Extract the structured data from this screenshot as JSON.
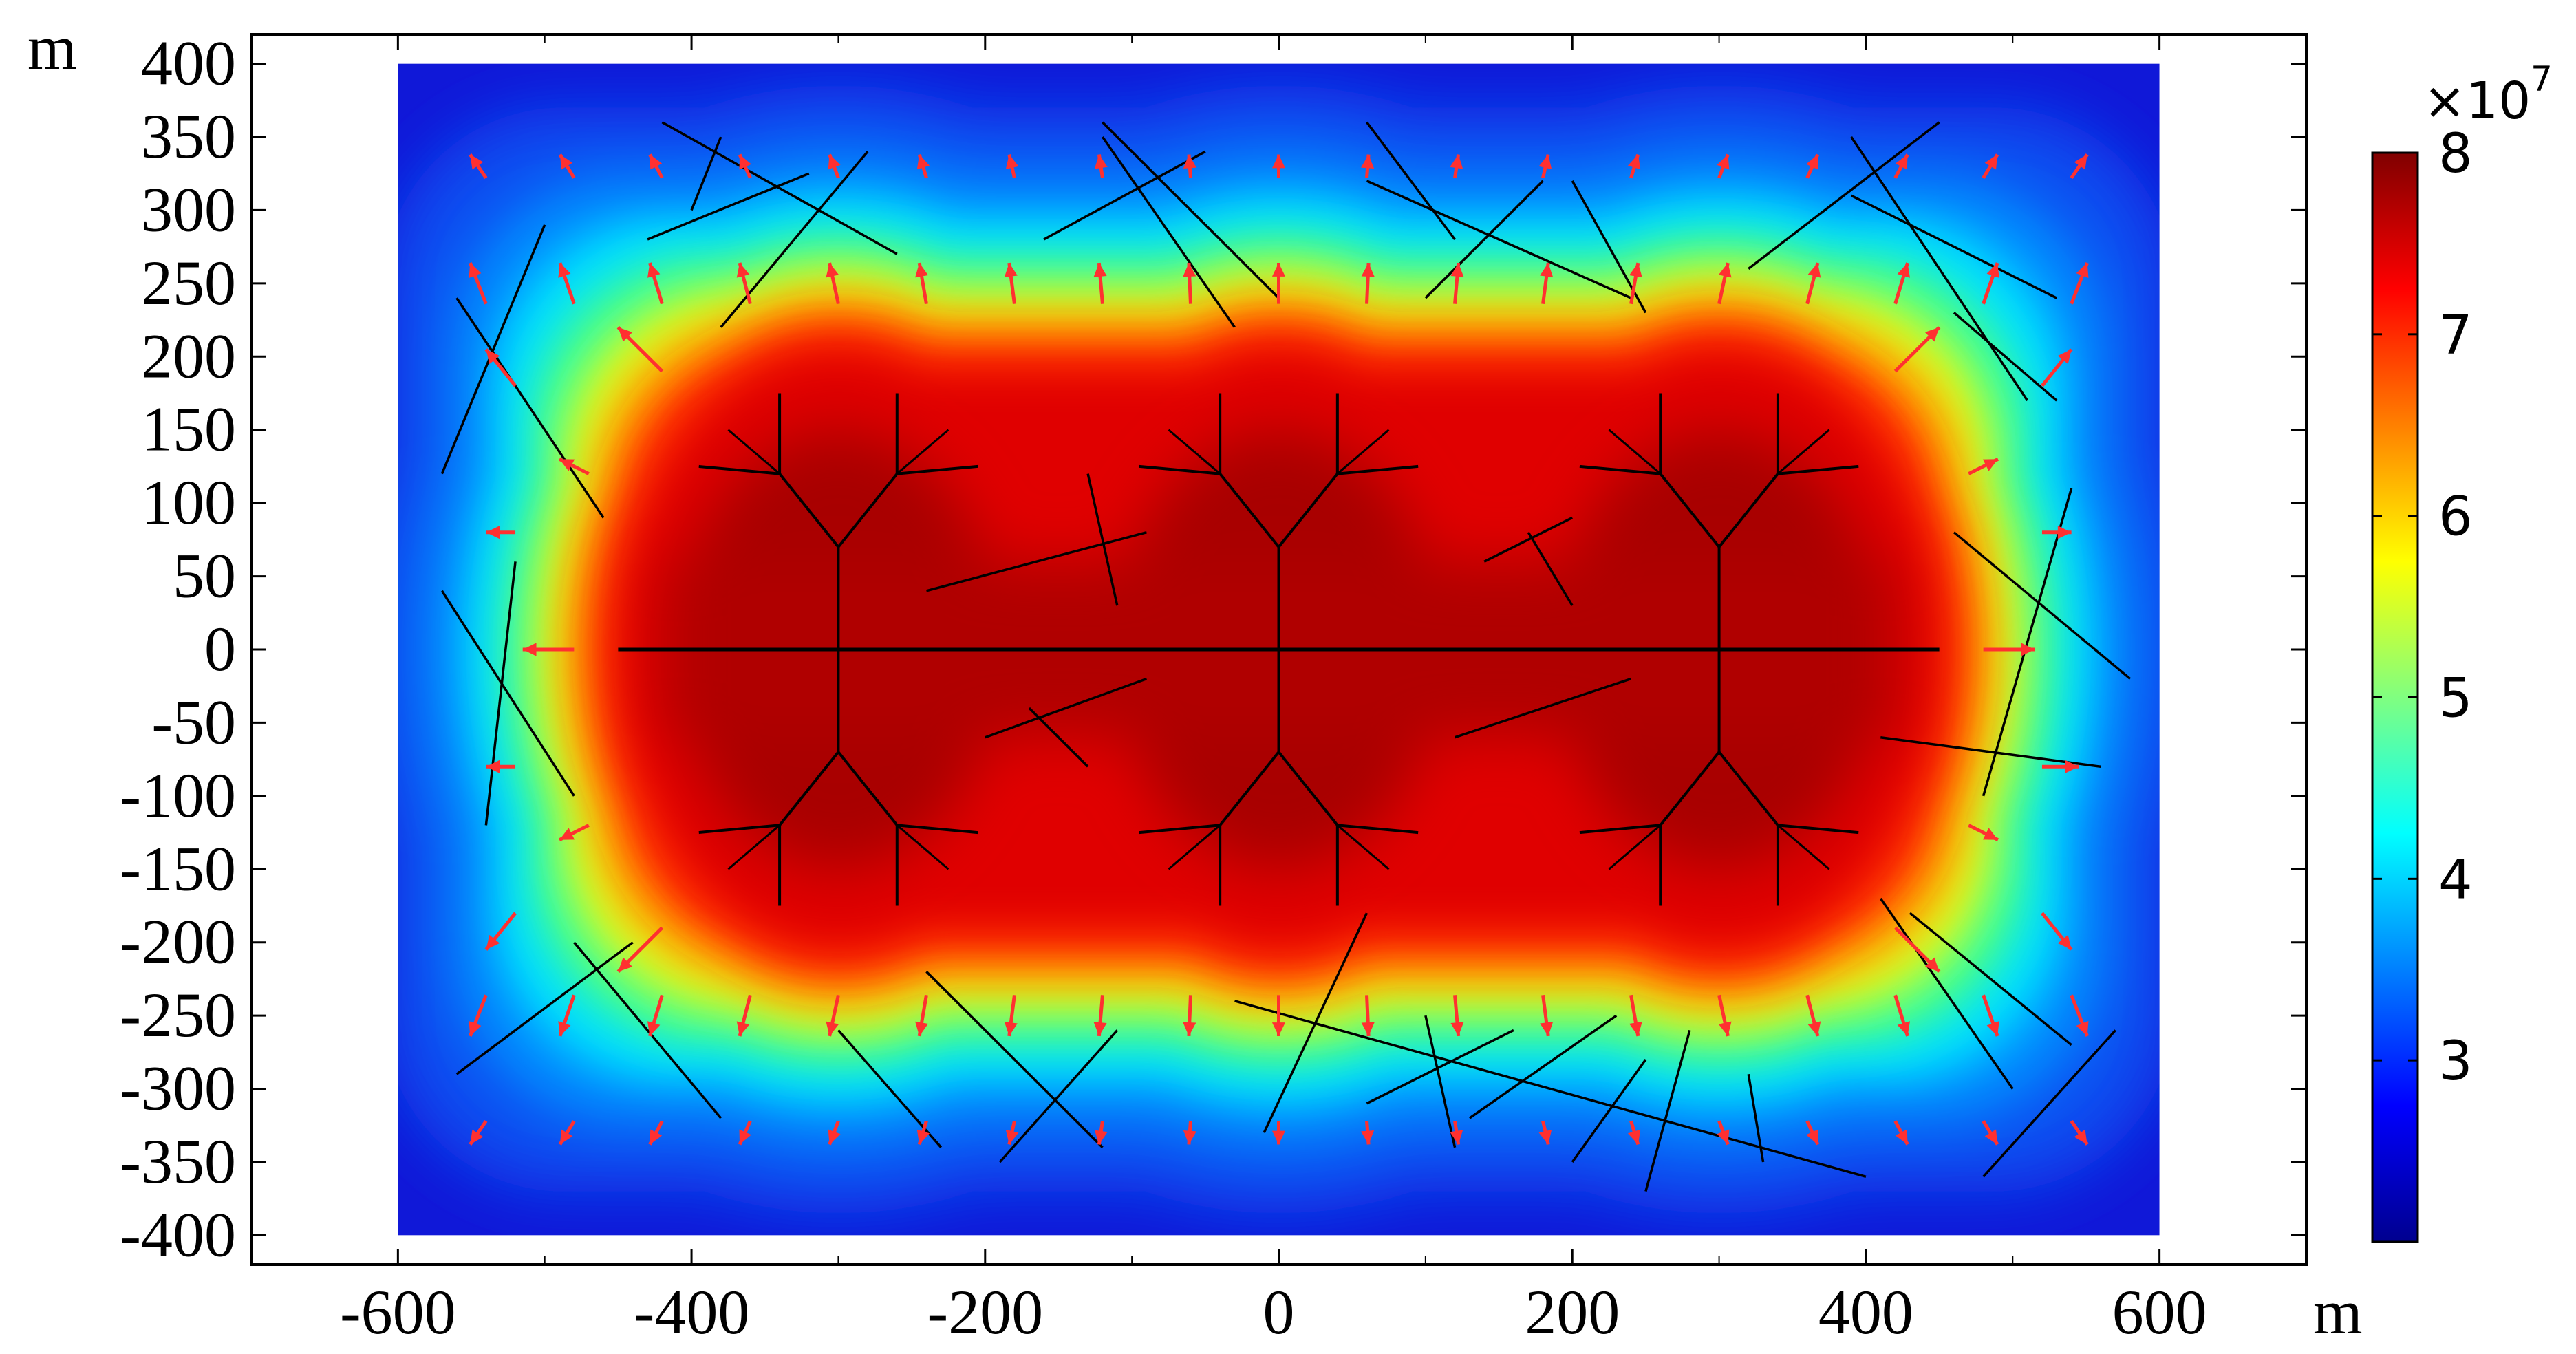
{
  "chart_data": {
    "type": "heatmap",
    "x_unit": "m",
    "y_unit": "m",
    "xlim": [
      -700,
      700
    ],
    "ylim": [
      -420,
      420
    ],
    "domain_x": [
      -600,
      600
    ],
    "domain_y": [
      -400,
      400
    ],
    "x_ticks": [
      -600,
      -400,
      -200,
      0,
      200,
      400,
      600
    ],
    "y_ticks": [
      400,
      350,
      300,
      250,
      200,
      150,
      100,
      50,
      0,
      -50,
      -100,
      -150,
      -200,
      -250,
      -300,
      -350,
      -400
    ],
    "colorbar": {
      "min": 2.0,
      "max": 8.0,
      "ticks": [
        8,
        7,
        6,
        5,
        4,
        3
      ],
      "multiplier_base": "×10",
      "multiplier_exp": "7",
      "colors": [
        "#00008f",
        "#0000ff",
        "#0080ff",
        "#00ffff",
        "#80ff80",
        "#ffff00",
        "#ff8000",
        "#ff0000",
        "#800000"
      ]
    },
    "high_zone": {
      "description_value_range": [
        7.5,
        8.0
      ],
      "x_extent": [
        -480,
        480
      ],
      "y_extent": [
        -215,
        215
      ]
    },
    "fracture_network": {
      "main_x": [
        -450,
        450
      ],
      "clusters_x": [
        -300,
        0,
        300
      ]
    },
    "colors": {
      "fracture": "#000000",
      "arrow": "#ff3030"
    }
  }
}
